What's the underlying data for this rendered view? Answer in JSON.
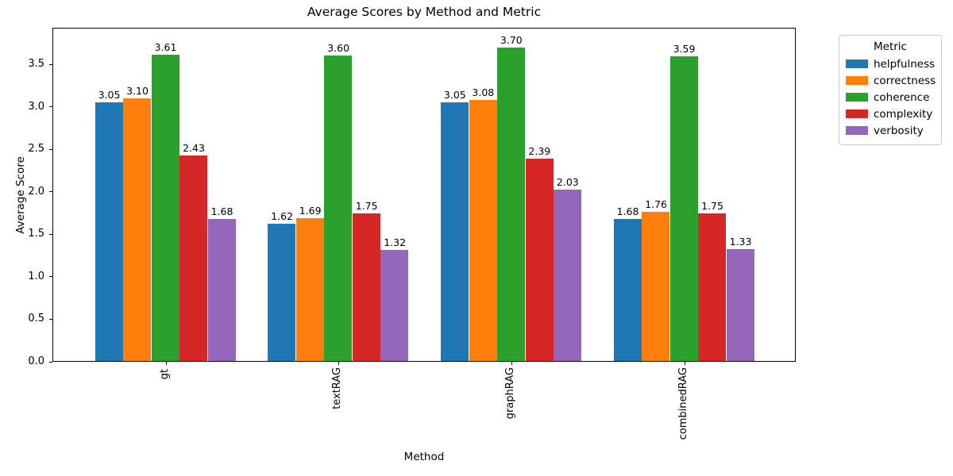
{
  "figure": {
    "title": "Average Scores by Method and Metric",
    "xlabel": "Method",
    "ylabel": "Average Score"
  },
  "legend": {
    "title": "Metric"
  },
  "chart_data": {
    "type": "bar",
    "title": "Average Scores by Method and Metric",
    "xlabel": "Method",
    "ylabel": "Average Score",
    "categories": [
      "gt",
      "textRAG",
      "graphRAG",
      "combinedRAG"
    ],
    "series": [
      {
        "name": "helpfulness",
        "color": "#1f77b4",
        "values": [
          3.05,
          1.62,
          3.05,
          1.68
        ]
      },
      {
        "name": "correctness",
        "color": "#ff7f0e",
        "values": [
          3.1,
          1.69,
          3.08,
          1.76
        ]
      },
      {
        "name": "coherence",
        "color": "#2ca02c",
        "values": [
          3.61,
          3.6,
          3.7,
          3.59
        ]
      },
      {
        "name": "complexity",
        "color": "#d62728",
        "values": [
          2.43,
          1.75,
          2.39,
          1.75
        ]
      },
      {
        "name": "verbosity",
        "color": "#9467bd",
        "values": [
          1.68,
          1.32,
          2.03,
          1.33
        ]
      }
    ],
    "bar_value_labels": true,
    "value_label_decimals": 2,
    "ylim": [
      0,
      3.93
    ],
    "yticks": [
      0.0,
      0.5,
      1.0,
      1.5,
      2.0,
      2.5,
      3.0,
      3.5
    ],
    "grid": false,
    "legend_title": "Metric",
    "legend_position": "outside-upper-right"
  }
}
